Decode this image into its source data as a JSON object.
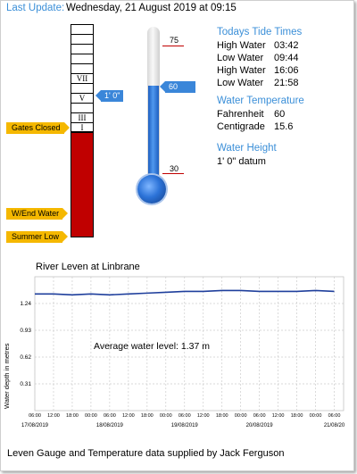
{
  "header": {
    "label": "Last Update:",
    "value": "Wednesday, 21 August 2019 at 09:15"
  },
  "gauge": {
    "roman_marks": [
      "VII",
      "V",
      "III",
      "I"
    ],
    "tags": {
      "gates_closed": "Gates Closed",
      "w_end_water": "W/End Water",
      "summer_low": "Summer Low"
    },
    "current_tag": "1' 0\"",
    "colors": {
      "fill": "#c00000",
      "tag": "#f5b800",
      "current_tag": "#3a86d9"
    }
  },
  "thermometer": {
    "top_label": "75",
    "current_label": "60",
    "bottom_label": "30",
    "colors": {
      "mercury": "#2e7be0"
    }
  },
  "tides": {
    "title": "Todays Tide Times",
    "rows": [
      {
        "type": "High Water",
        "time": "03:42"
      },
      {
        "type": "Low Water",
        "time": "09:44"
      },
      {
        "type": "High Water",
        "time": "16:06"
      },
      {
        "type": "Low Water",
        "time": "21:58"
      }
    ]
  },
  "temperature": {
    "title": "Water Temperature",
    "fahrenheit_label": "Fahrenheit",
    "fahrenheit_value": "60",
    "centigrade_label": "Centigrade",
    "centigrade_value": "15.6"
  },
  "height": {
    "title": "Water Height",
    "value": "1' 0\"  datum"
  },
  "chart_data": {
    "type": "line",
    "title": "River Leven at Linbrane",
    "ylabel": "Water depth in metres",
    "annotation": "Average water level: 1.37 m",
    "ylim": [
      0,
      1.55
    ],
    "yticks": [
      1.24,
      0.93,
      0.62,
      0.31
    ],
    "xtick_labels": [
      "06:00",
      "12:00",
      "18:00",
      "00:00",
      "06:00",
      "12:00",
      "18:00",
      "00:00",
      "06:00",
      "12:00",
      "18:00",
      "00:00",
      "06:00",
      "12:00",
      "18:00",
      "00:00",
      "06:00"
    ],
    "date_labels": [
      "17/08/2019",
      "18/08/2019",
      "19/08/2019",
      "20/08/2019",
      "21/08/20"
    ],
    "x": [
      0,
      2,
      4,
      6,
      8,
      10,
      12,
      14,
      16,
      18,
      20,
      22,
      24,
      26,
      28,
      30,
      32
    ],
    "series": [
      {
        "values": [
          1.35,
          1.35,
          1.34,
          1.35,
          1.34,
          1.35,
          1.36,
          1.37,
          1.38,
          1.38,
          1.39,
          1.39,
          1.38,
          1.38,
          1.38,
          1.39,
          1.38
        ]
      }
    ],
    "grid": true,
    "line_color": "#1f3f9c"
  },
  "footer": "Leven Gauge and Temperature data supplied by Jack Ferguson"
}
